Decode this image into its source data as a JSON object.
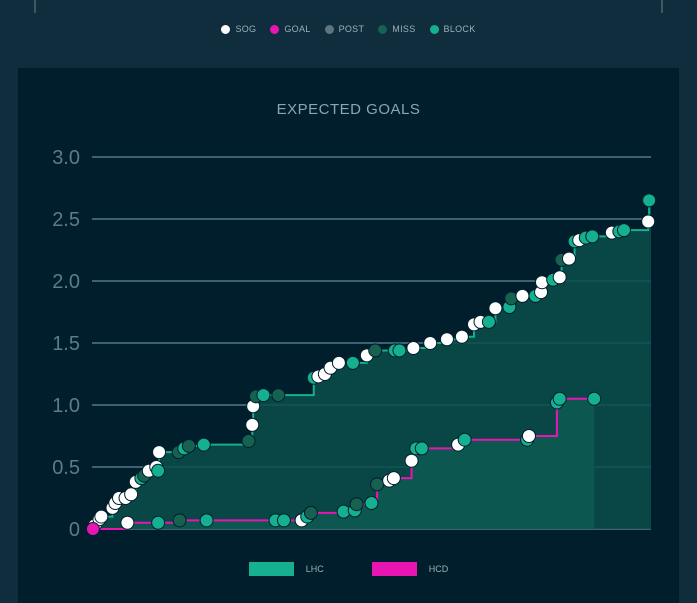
{
  "shot_legend": {
    "items": [
      {
        "label": "SOG",
        "color": "#ffffff"
      },
      {
        "label": "GOAL",
        "color": "#e815b3"
      },
      {
        "label": "POST",
        "color": "#5e7582"
      },
      {
        "label": "MISS",
        "color": "#16614f"
      },
      {
        "label": "BLOCK",
        "color": "#15b08f"
      }
    ]
  },
  "team_legend": {
    "items": [
      {
        "label": "LHC",
        "color": "#15b08f"
      },
      {
        "label": "HCD",
        "color": "#e815b3"
      }
    ]
  },
  "chart_data": {
    "type": "line",
    "title": "EXPECTED GOALS",
    "xlabel": "",
    "ylabel": "",
    "ylim": [
      0,
      3.0
    ],
    "yticks": [
      "0",
      "0.5",
      "1.0",
      "1.5",
      "2.0",
      "2.5",
      "3.0"
    ],
    "xlim": [
      0,
      60
    ],
    "grid": true,
    "legend": "bottom",
    "series": [
      {
        "name": "LHC",
        "color": "#15b08f",
        "fill": "#0a4f4b",
        "final": 2.66,
        "shots": [
          [
            0.3,
            0.03,
            "SOG"
          ],
          [
            0.8,
            0.08,
            "SOG"
          ],
          [
            1.0,
            0.1,
            "SOG"
          ],
          [
            2.2,
            0.17,
            "SOG"
          ],
          [
            2.5,
            0.21,
            "SOG"
          ],
          [
            2.9,
            0.25,
            "SOG"
          ],
          [
            3.6,
            0.25,
            "SOG"
          ],
          [
            4.2,
            0.28,
            "SOG"
          ],
          [
            4.7,
            0.38,
            "SOG"
          ],
          [
            5.3,
            0.41,
            "BLOCK"
          ],
          [
            5.6,
            0.43,
            "MISS"
          ],
          [
            6.1,
            0.47,
            "SOG"
          ],
          [
            6.9,
            0.5,
            "SOG"
          ],
          [
            7.1,
            0.47,
            "BLOCK"
          ],
          [
            7.2,
            0.62,
            "SOG"
          ],
          [
            9.3,
            0.62,
            "MISS"
          ],
          [
            9.9,
            0.65,
            "BLOCK"
          ],
          [
            10.4,
            0.67,
            "MISS"
          ],
          [
            12.0,
            0.68,
            "BLOCK"
          ],
          [
            16.8,
            0.71,
            "MISS"
          ],
          [
            17.2,
            0.84,
            "SOG"
          ],
          [
            17.3,
            0.99,
            "SOG"
          ],
          [
            17.6,
            1.07,
            "MISS"
          ],
          [
            18.4,
            1.08,
            "BLOCK"
          ],
          [
            20.0,
            1.08,
            "MISS"
          ],
          [
            23.8,
            1.22,
            "BLOCK"
          ],
          [
            24.3,
            1.23,
            "SOG"
          ],
          [
            25.0,
            1.25,
            "SOG"
          ],
          [
            25.6,
            1.3,
            "SOG"
          ],
          [
            26.5,
            1.34,
            "SOG"
          ],
          [
            28.0,
            1.34,
            "BLOCK"
          ],
          [
            29.5,
            1.4,
            "SOG"
          ],
          [
            30.4,
            1.44,
            "MISS"
          ],
          [
            32.5,
            1.44,
            "BLOCK"
          ],
          [
            33.0,
            1.44,
            "BLOCK"
          ],
          [
            34.5,
            1.46,
            "SOG"
          ],
          [
            36.3,
            1.5,
            "SOG"
          ],
          [
            38.1,
            1.53,
            "SOG"
          ],
          [
            39.7,
            1.55,
            "SOG"
          ],
          [
            41.0,
            1.65,
            "SOG"
          ],
          [
            41.7,
            1.67,
            "SOG"
          ],
          [
            42.6,
            1.67,
            "BLOCK"
          ],
          [
            43.3,
            1.78,
            "SOG"
          ],
          [
            44.8,
            1.79,
            "BLOCK"
          ],
          [
            45.0,
            1.86,
            "MISS"
          ],
          [
            46.2,
            1.88,
            "SOG"
          ],
          [
            47.6,
            1.88,
            "BLOCK"
          ],
          [
            48.2,
            1.91,
            "SOG"
          ],
          [
            48.3,
            1.99,
            "SOG"
          ],
          [
            49.5,
            2.01,
            "BLOCK"
          ],
          [
            50.2,
            2.03,
            "SOG"
          ],
          [
            50.4,
            2.17,
            "MISS"
          ],
          [
            51.2,
            2.18,
            "SOG"
          ],
          [
            51.8,
            2.32,
            "BLOCK"
          ],
          [
            52.3,
            2.33,
            "SOG"
          ],
          [
            53.0,
            2.35,
            "BLOCK"
          ],
          [
            53.7,
            2.36,
            "BLOCK"
          ],
          [
            55.8,
            2.39,
            "SOG"
          ],
          [
            56.6,
            2.4,
            "BLOCK"
          ],
          [
            57.1,
            2.41,
            "BLOCK"
          ],
          [
            59.7,
            2.48,
            "SOG"
          ],
          [
            59.8,
            2.65,
            "BLOCK"
          ]
        ]
      },
      {
        "name": "HCD",
        "color": "#e815b3",
        "fill": "#0d5a52",
        "final": 1.05,
        "shots": [
          [
            0.1,
            0.0,
            "GOAL"
          ],
          [
            3.8,
            0.05,
            "SOG"
          ],
          [
            7.1,
            0.05,
            "BLOCK"
          ],
          [
            9.4,
            0.07,
            "MISS"
          ],
          [
            12.3,
            0.07,
            "BLOCK"
          ],
          [
            19.7,
            0.07,
            "BLOCK"
          ],
          [
            20.6,
            0.07,
            "BLOCK"
          ],
          [
            22.5,
            0.07,
            "SOG"
          ],
          [
            23.1,
            0.1,
            "BLOCK"
          ],
          [
            23.5,
            0.13,
            "MISS"
          ],
          [
            27.0,
            0.14,
            "BLOCK"
          ],
          [
            28.2,
            0.15,
            "BLOCK"
          ],
          [
            28.4,
            0.2,
            "MISS"
          ],
          [
            30.0,
            0.21,
            "BLOCK"
          ],
          [
            30.6,
            0.36,
            "MISS"
          ],
          [
            31.9,
            0.39,
            "SOG"
          ],
          [
            32.4,
            0.41,
            "SOG"
          ],
          [
            34.3,
            0.55,
            "SOG"
          ],
          [
            34.8,
            0.65,
            "BLOCK"
          ],
          [
            35.4,
            0.65,
            "BLOCK"
          ],
          [
            39.3,
            0.68,
            "SOG"
          ],
          [
            40.0,
            0.72,
            "BLOCK"
          ],
          [
            46.7,
            0.72,
            "BLOCK"
          ],
          [
            46.9,
            0.75,
            "SOG"
          ],
          [
            49.9,
            1.02,
            "BLOCK"
          ],
          [
            50.2,
            1.05,
            "BLOCK"
          ],
          [
            53.9,
            1.05,
            "BLOCK"
          ]
        ]
      }
    ]
  }
}
